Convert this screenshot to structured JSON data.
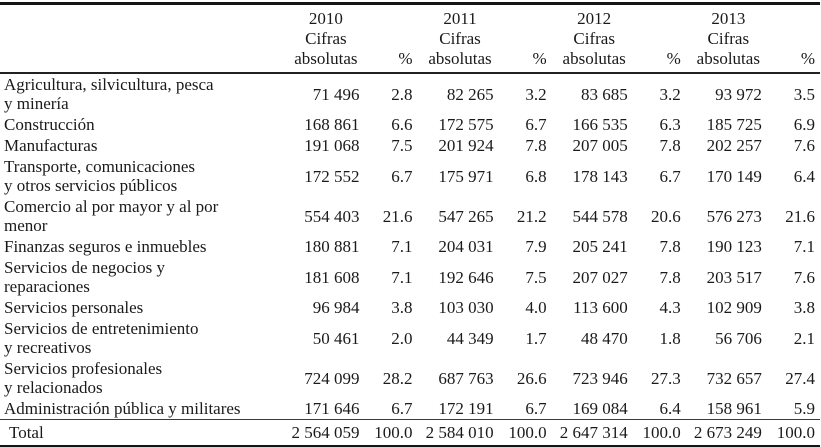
{
  "table": {
    "year_groups": [
      {
        "year": "2010",
        "measure_label": "Cifras\nabsolutas",
        "pct_label": "%"
      },
      {
        "year": "2011",
        "measure_label": "Cifras\nabsolutas",
        "pct_label": "%"
      },
      {
        "year": "2012",
        "measure_label": "Cifras\nabsolutas",
        "pct_label": "%"
      },
      {
        "year": "2013",
        "measure_label": "Cifras\nabsolutas",
        "pct_label": "%"
      }
    ],
    "rows": [
      {
        "label": "Agricultura, silvicultura, pesca\ny minería",
        "values": [
          "71 496",
          "2.8",
          "82 265",
          "3.2",
          "83 685",
          "3.2",
          "93 972",
          "3.5"
        ]
      },
      {
        "label": "Construcción",
        "values": [
          "168 861",
          "6.6",
          "172 575",
          "6.7",
          "166 535",
          "6.3",
          "185 725",
          "6.9"
        ]
      },
      {
        "label": "Manufacturas",
        "values": [
          "191 068",
          "7.5",
          "201 924",
          "7.8",
          "207 005",
          "7.8",
          "202 257",
          "7.6"
        ]
      },
      {
        "label": "Transporte, comunicaciones\ny otros servicios públicos",
        "values": [
          "172 552",
          "6.7",
          "175 971",
          "6.8",
          "178 143",
          "6.7",
          "170 149",
          "6.4"
        ]
      },
      {
        "label": "Comercio al por mayor y al por\nmenor",
        "values": [
          "554 403",
          "21.6",
          "547 265",
          "21.2",
          "544 578",
          "20.6",
          "576 273",
          "21.6"
        ]
      },
      {
        "label": "Finanzas  seguros e inmuebles",
        "values": [
          "180 881",
          "7.1",
          "204 031",
          "7.9",
          "205 241",
          "7.8",
          "190 123",
          "7.1"
        ]
      },
      {
        "label": "Servicios de negocios y\nreparaciones",
        "values": [
          "181 608",
          "7.1",
          "192 646",
          "7.5",
          "207 027",
          "7.8",
          "203 517",
          "7.6"
        ]
      },
      {
        "label": "Servicios personales",
        "values": [
          "96 984",
          "3.8",
          "103 030",
          "4.0",
          "113 600",
          "4.3",
          "102 909",
          "3.8"
        ]
      },
      {
        "label": "Servicios de entretenimiento\ny recreativos",
        "values": [
          "50 461",
          "2.0",
          "44 349",
          "1.7",
          "48 470",
          "1.8",
          "56 706",
          "2.1"
        ]
      },
      {
        "label": "Servicios profesionales\ny relacionados",
        "values": [
          "724 099",
          "28.2",
          "687 763",
          "26.6",
          "723 946",
          "27.3",
          "732 657",
          "27.4"
        ]
      },
      {
        "label": "Administración pública y militares",
        "values": [
          "171 646",
          "6.7",
          "172 191",
          "6.7",
          "169 084",
          "6.4",
          "158 961",
          "5.9"
        ]
      }
    ],
    "total_row": {
      "label": "Total",
      "values": [
        "2 564 059",
        "100.0",
        "2 584 010",
        "100.0",
        "2 647 314",
        "100.0",
        "2 673 249",
        "100.0"
      ]
    }
  }
}
